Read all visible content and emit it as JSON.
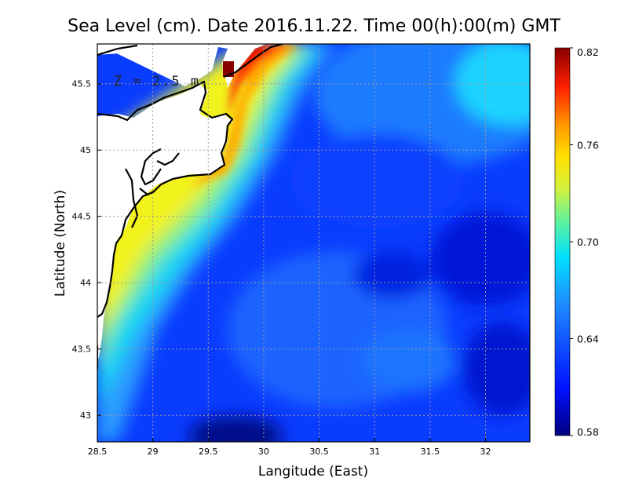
{
  "title": "Sea Level (cm). Date 2016.11.22. Time 00(h):00(m) GMT",
  "depth_label": "Z = 2.5 m",
  "x_axis": {
    "label": "Langitude (East)",
    "range": [
      28.5,
      32.4
    ],
    "ticks": [
      "28.5",
      "29",
      "29.5",
      "30",
      "30.5",
      "31",
      "31.5",
      "32"
    ]
  },
  "y_axis": {
    "label": "Latitude (North)",
    "range": [
      42.8,
      45.8
    ],
    "ticks": [
      "43",
      "43.5",
      "44",
      "44.5",
      "45",
      "45.5"
    ]
  },
  "colorbar": {
    "min": 0.58,
    "max": 0.82,
    "ticks": [
      "0.82",
      "0.76",
      "0.70",
      "0.64",
      "0.58"
    ]
  },
  "colors": {
    "land": "#ffffff",
    "coast": "#000000",
    "grid": "#9a9a9a"
  },
  "chart_data": {
    "type": "heatmap",
    "variable": "Sea Level",
    "date": "2016.11.22",
    "time": "00(h):00(m) GMT",
    "depth_m": 2.5,
    "xlabel": "Langitude (East)",
    "ylabel": "Latitude (North)",
    "xlim": [
      28.5,
      32.4
    ],
    "ylim": [
      42.8,
      45.8
    ],
    "value_range": [
      0.58,
      0.82
    ],
    "grid": true,
    "colorbar": "right",
    "sampled_values": [
      {
        "lon": 28.6,
        "lat": 44.3,
        "value": 0.73
      },
      {
        "lon": 28.6,
        "lat": 43.4,
        "value": 0.68
      },
      {
        "lon": 29.0,
        "lat": 44.5,
        "value": 0.73
      },
      {
        "lon": 29.3,
        "lat": 44.0,
        "value": 0.71
      },
      {
        "lon": 29.6,
        "lat": 44.8,
        "value": 0.74
      },
      {
        "lon": 29.8,
        "lat": 45.3,
        "value": 0.77
      },
      {
        "lon": 29.9,
        "lat": 45.7,
        "value": 0.82
      },
      {
        "lon": 30.2,
        "lat": 45.75,
        "value": 0.81
      },
      {
        "lon": 30.5,
        "lat": 45.2,
        "value": 0.68
      },
      {
        "lon": 30.8,
        "lat": 44.5,
        "value": 0.64
      },
      {
        "lon": 31.0,
        "lat": 45.5,
        "value": 0.62
      },
      {
        "lon": 31.3,
        "lat": 44.9,
        "value": 0.6
      },
      {
        "lon": 31.5,
        "lat": 43.9,
        "value": 0.62
      },
      {
        "lon": 31.0,
        "lat": 44.1,
        "value": 0.6
      },
      {
        "lon": 32.2,
        "lat": 45.6,
        "value": 0.67
      },
      {
        "lon": 32.3,
        "lat": 44.2,
        "value": 0.59
      },
      {
        "lon": 29.8,
        "lat": 42.85,
        "value": 0.59
      },
      {
        "lon": 30.5,
        "lat": 43.3,
        "value": 0.62
      }
    ]
  }
}
